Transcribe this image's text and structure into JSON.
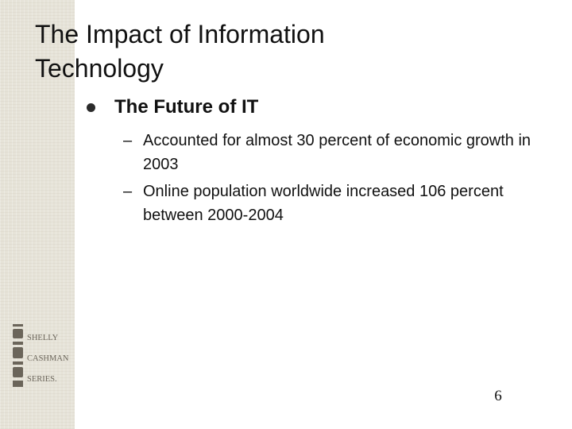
{
  "slide": {
    "title_line1": "The Impact of Information",
    "title_line2": "Technology",
    "bullet": "The Future of IT",
    "subpoints": [
      {
        "dash": "–",
        "text": "Accounted for almost 30 percent of economic growth in 2003"
      },
      {
        "dash": "–",
        "text": "Online population worldwide increased 106 percent between 2000-2004"
      }
    ],
    "page_number": "6"
  },
  "logo": {
    "name": "shelly-cashman-series-logo",
    "text": [
      "SHELLY",
      "CASHMAN",
      "SERIES."
    ]
  },
  "colors": {
    "left_band": "#e6e3d8",
    "text": "#111111",
    "logo_ink": "#6b655a"
  }
}
